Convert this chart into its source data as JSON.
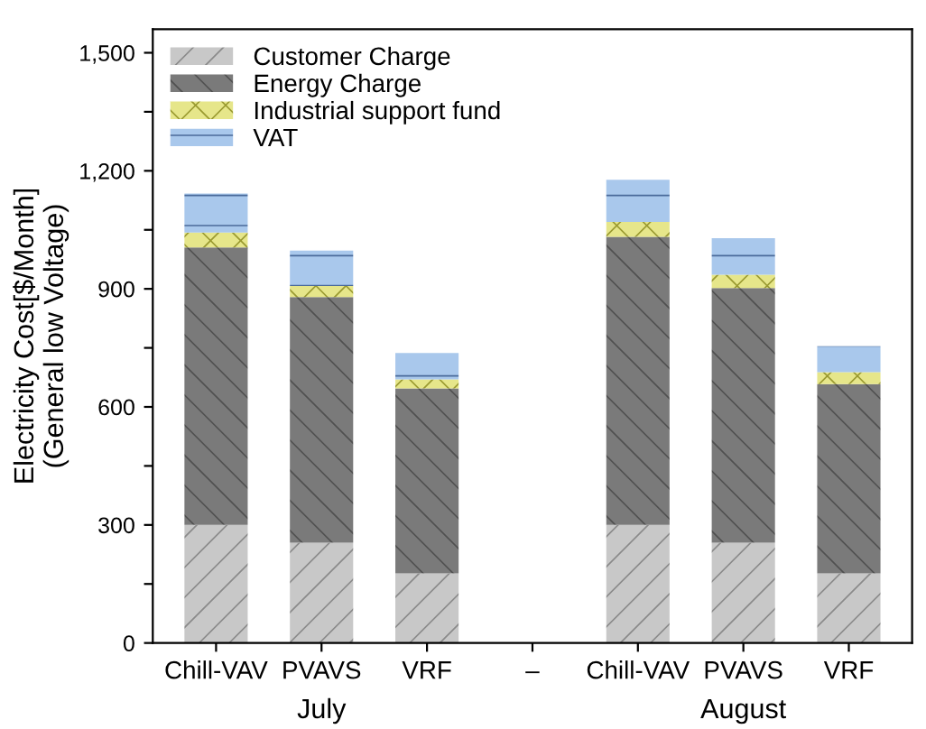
{
  "chart_data": {
    "type": "bar",
    "stacked": true,
    "ylabel": "Electricity Cost[$/Month]\n(General low Voltage)",
    "categories": [
      "Chill-VAV",
      "PVAVS",
      "VRF",
      "–",
      "Chill-VAV",
      "PVAVS",
      "VRF"
    ],
    "series": [
      {
        "name": "Customer Charge",
        "color": "#c8c8c8",
        "values": [
          300,
          255,
          177,
          null,
          300,
          255,
          177
        ]
      },
      {
        "name": "Energy Charge",
        "color": "#7a7a7a",
        "values": [
          705,
          624,
          470,
          null,
          732,
          647,
          481
        ]
      },
      {
        "name": "Industrial support fund",
        "color": "#e6e68a",
        "values": [
          38,
          28,
          23,
          null,
          38,
          34,
          30
        ]
      },
      {
        "name": "VAT",
        "color": "#a9c8ec",
        "values": [
          99,
          90,
          67,
          null,
          107,
          93,
          66
        ]
      }
    ],
    "ylim": [
      0,
      1560
    ],
    "yticks": [
      0,
      {
        "value": 150,
        "label": null
      },
      {
        "value": 300,
        "label": "300"
      },
      {
        "value": 450,
        "label": null
      },
      {
        "value": 600,
        "label": "600"
      },
      {
        "value": 750,
        "label": null
      },
      {
        "value": 900,
        "label": "900"
      },
      {
        "value": 1050,
        "label": null
      },
      {
        "value": 1200,
        "label": "1,200"
      },
      {
        "value": 1350,
        "label": null
      },
      {
        "value": 1500,
        "label": "1,500"
      }
    ],
    "legend": "top left",
    "grid": false,
    "annotations": [
      "July",
      "August"
    ]
  }
}
